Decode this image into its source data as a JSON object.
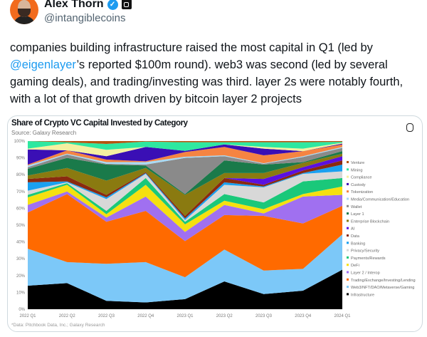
{
  "tweet": {
    "author_name": "Alex Thorn",
    "handle": "@intangiblecoins",
    "text_parts": [
      "companies building infrastructure raised the most capital in Q1 (led by ",
      "@eigenlayer",
      "’s reported $100m round). web3 was second (led by several gaming deals), and trading/investing was third. layer 2s were notably fourth, with a lot of that growth driven by bitcoin layer 2 projects"
    ]
  },
  "chart_data": {
    "type": "area",
    "stacked": true,
    "title": "Share of Crypto VC Capital Invested by Category",
    "subtitle": "Source: Galaxy Research",
    "footnote": "*Data: Pitchbook Data, Inc.; Galaxy Research",
    "categories": [
      "2022 Q1",
      "2022 Q2",
      "2022 Q3",
      "2022 Q4",
      "2023 Q1",
      "2023 Q2",
      "2023 Q3",
      "2023 Q4",
      "2024 Q1"
    ],
    "y_ticks": [
      "0%",
      "10%",
      "20%",
      "30%",
      "40%",
      "50%",
      "60%",
      "70%",
      "80%",
      "90%",
      "100%"
    ],
    "ylim": [
      0,
      100
    ],
    "legend_position": "right",
    "series": [
      {
        "name": "Infrastructure",
        "color": "#000000",
        "values": [
          14,
          15.5,
          5,
          4,
          6,
          16.5,
          9,
          11,
          23.5
        ]
      },
      {
        "name": "Web3/NFT/DAO/Metaverse/Gaming",
        "color": "#7cc8f8",
        "values": [
          22,
          12.5,
          22,
          24,
          13,
          19,
          14,
          13,
          21
        ]
      },
      {
        "name": "Trading/Exchange/Investing/Lending",
        "color": "#ff6a00",
        "values": [
          21.5,
          40.5,
          25,
          30.5,
          21.5,
          20.5,
          32.5,
          27,
          17
        ]
      },
      {
        "name": "Layer 2 / Interop",
        "color": "#a070f0",
        "values": [
          4.5,
          1.5,
          2.5,
          8.5,
          5.5,
          6,
          1.5,
          16,
          6.5
        ]
      },
      {
        "name": "DeFi",
        "color": "#f5e010",
        "values": [
          4.5,
          4,
          2,
          7,
          4.5,
          2.5,
          2.5,
          1.5,
          5
        ]
      },
      {
        "name": "Payments/Rewards",
        "color": "#1ac87a",
        "values": [
          1.5,
          1,
          2,
          4,
          1.5,
          4,
          4,
          7.5,
          5
        ]
      },
      {
        "name": "Privacy/Security",
        "color": "#d8d8d8",
        "values": [
          2.5,
          0.5,
          7,
          2.5,
          1,
          5.5,
          9,
          4.5,
          4
        ]
      },
      {
        "name": "Banking",
        "color": "#1aa0f0",
        "values": [
          5,
          0.5,
          1,
          0.5,
          1,
          1.5,
          0.5,
          0.5,
          4
        ]
      },
      {
        "name": "Data",
        "color": "#8a2a10",
        "values": [
          2,
          3,
          1.5,
          0.5,
          1.5,
          2.5,
          1,
          1.5,
          2.5
        ]
      },
      {
        "name": "AI",
        "color": "#5a10e0",
        "values": [
          0,
          0,
          0,
          0,
          0,
          0,
          3.5,
          2,
          2.5
        ]
      },
      {
        "name": "Enterprise Blockchain",
        "color": "#8a7a10",
        "values": [
          2,
          5,
          8.5,
          2.5,
          12.5,
          3,
          3.5,
          2.5,
          1.5
        ]
      },
      {
        "name": "Layer 1",
        "color": "#1a7a4a",
        "values": [
          4,
          6,
          9.5,
          1.5,
          0.5,
          7.5,
          5,
          0.5,
          1.5
        ]
      },
      {
        "name": "Wallet",
        "color": "#8a8a8a",
        "values": [
          1,
          2,
          0.5,
          0.5,
          21.5,
          2.5,
          0.5,
          3,
          2
        ]
      },
      {
        "name": "Media/Communication/Education",
        "color": "#a8daf5",
        "values": [
          1,
          0.5,
          1,
          1.5,
          0.7,
          0.5,
          0.3,
          0.5,
          0.5
        ]
      },
      {
        "name": "Tokenization",
        "color": "#f58442",
        "values": [
          0.5,
          2,
          1.5,
          0.5,
          2.8,
          5,
          4.7,
          3,
          1.5
        ]
      },
      {
        "name": "Custody",
        "color": "#3a0fb5",
        "values": [
          9,
          0,
          2,
          8.5,
          0.7,
          1.5,
          4,
          0,
          0.5
        ]
      },
      {
        "name": "Compliance",
        "color": "#f5f0a0",
        "values": [
          0.5,
          4.2,
          3.8,
          0,
          0,
          0,
          1,
          1.5,
          0.5
        ]
      },
      {
        "name": "Mining",
        "color": "#2ee8a0",
        "values": [
          4.5,
          0.6,
          3.5,
          3.2,
          5.1,
          1.3,
          2.8,
          3.8,
          0.5
        ]
      },
      {
        "name": "Venture",
        "color": "#b5540f",
        "values": [
          0,
          0.7,
          1.7,
          0.3,
          0.7,
          0.7,
          0.7,
          0.7,
          0.5
        ]
      }
    ]
  }
}
